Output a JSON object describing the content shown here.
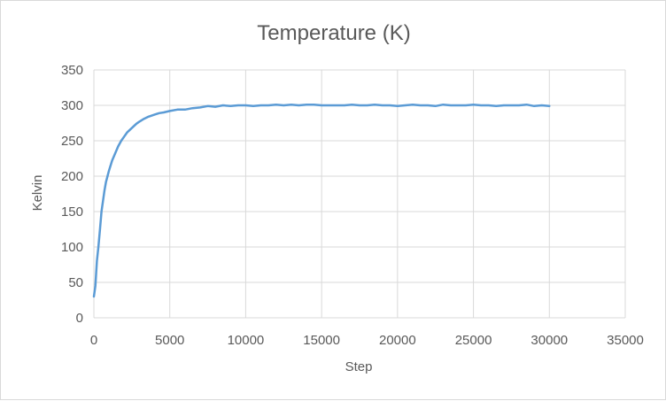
{
  "chart_data": {
    "type": "line",
    "title": "Temperature (K)",
    "xlabel": "Step",
    "ylabel": "Kelvin",
    "xlim": [
      0,
      35000
    ],
    "ylim": [
      0,
      350
    ],
    "xticks": [
      0,
      5000,
      10000,
      15000,
      20000,
      25000,
      30000,
      35000
    ],
    "yticks": [
      0,
      50,
      100,
      150,
      200,
      250,
      300,
      350
    ],
    "grid": true,
    "legend": "none",
    "colors": {
      "series": "#5b9bd5",
      "grid": "#d9d9d9",
      "text": "#595959"
    },
    "series": [
      {
        "x": [
          0,
          100,
          200,
          300,
          400,
          500,
          600,
          700,
          800,
          900,
          1000,
          1200,
          1400,
          1600,
          1800,
          2000,
          2200,
          2500,
          2800,
          3000,
          3300,
          3600,
          4000,
          4300,
          4600,
          5000,
          5500,
          6000,
          6500,
          7000,
          7500,
          8000,
          8500,
          9000,
          9500,
          10000,
          10500,
          11000,
          11500,
          12000,
          12500,
          13000,
          13500,
          14000,
          14500,
          15000,
          15500,
          16000,
          16500,
          17000,
          17500,
          18000,
          18500,
          19000,
          19500,
          20000,
          20500,
          21000,
          21500,
          22000,
          22500,
          23000,
          23500,
          24000,
          24500,
          25000,
          25500,
          26000,
          26500,
          27000,
          27500,
          28000,
          28500,
          29000,
          29500,
          30000
        ],
        "y": [
          30,
          45,
          80,
          100,
          125,
          150,
          165,
          180,
          192,
          200,
          208,
          222,
          232,
          242,
          250,
          256,
          262,
          268,
          274,
          277,
          281,
          284,
          287,
          289,
          290,
          292,
          294,
          294,
          296,
          297,
          299,
          298,
          300,
          299,
          300,
          300,
          299,
          300,
          300,
          301,
          300,
          301,
          300,
          301,
          301,
          300,
          300,
          300,
          300,
          301,
          300,
          300,
          301,
          300,
          300,
          299,
          300,
          301,
          300,
          300,
          299,
          301,
          300,
          300,
          300,
          301,
          300,
          300,
          299,
          300,
          300,
          300,
          301,
          299,
          300,
          299
        ]
      }
    ]
  }
}
